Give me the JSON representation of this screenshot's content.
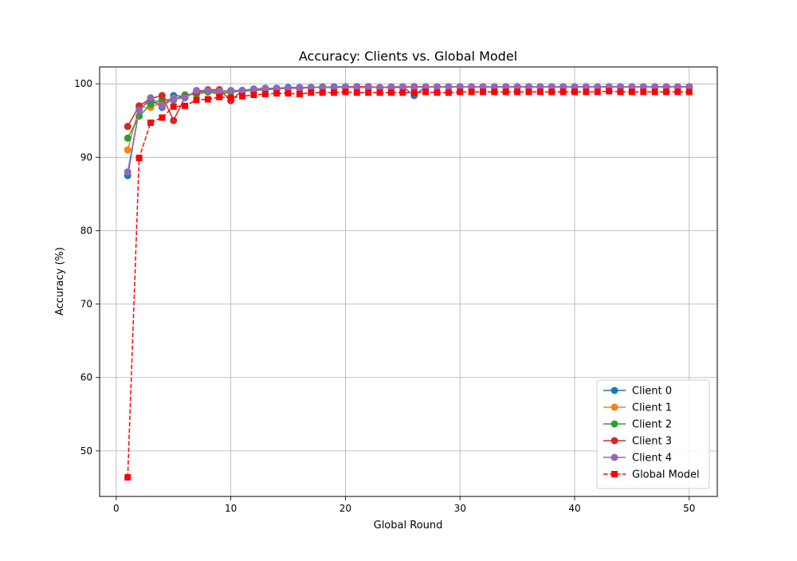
{
  "chart_data": {
    "type": "line",
    "title": "Accuracy: Clients vs. Global Model",
    "xlabel": "Global Round",
    "ylabel": "Accuracy (%)",
    "xlim": [
      -1.45,
      52.45
    ],
    "ylim": [
      43.8,
      102.3
    ],
    "xticks": [
      0,
      10,
      20,
      30,
      40,
      50
    ],
    "yticks": [
      50,
      60,
      70,
      80,
      90,
      100
    ],
    "grid": true,
    "legend_position": "lower-right",
    "x": [
      1,
      2,
      3,
      4,
      5,
      6,
      7,
      8,
      9,
      10,
      11,
      12,
      13,
      14,
      15,
      16,
      17,
      18,
      19,
      20,
      21,
      22,
      23,
      24,
      25,
      26,
      27,
      28,
      29,
      30,
      31,
      32,
      33,
      34,
      35,
      36,
      37,
      38,
      39,
      40,
      41,
      42,
      43,
      44,
      45,
      46,
      47,
      48,
      49,
      50
    ],
    "series": [
      {
        "name": "Client 0",
        "color": "#1f77b4",
        "marker": "circle",
        "linestyle": "solid",
        "values": [
          87.5,
          96.5,
          97.8,
          96.8,
          98.4,
          98.3,
          98.8,
          99.0,
          98.9,
          99.0,
          99.1,
          99.2,
          99.2,
          99.4,
          99.5,
          99.5,
          99.5,
          99.5,
          99.6,
          99.6,
          99.6,
          99.6,
          99.5,
          99.6,
          99.6,
          98.4,
          99.6,
          99.6,
          99.6,
          99.6,
          99.6,
          99.6,
          99.6,
          99.6,
          99.6,
          99.6,
          99.6,
          99.6,
          99.6,
          99.6,
          99.6,
          99.6,
          99.6,
          99.6,
          99.6,
          99.6,
          99.6,
          99.6,
          99.6,
          99.6
        ]
      },
      {
        "name": "Client 1",
        "color": "#ff7f0e",
        "marker": "circle",
        "linestyle": "solid",
        "values": [
          91.0,
          96.8,
          96.8,
          97.5,
          98.0,
          98.3,
          98.8,
          98.9,
          98.8,
          99.0,
          99.1,
          99.2,
          99.2,
          99.3,
          99.4,
          99.4,
          99.5,
          99.5,
          99.5,
          99.5,
          99.5,
          99.5,
          99.5,
          99.6,
          99.6,
          99.6,
          99.6,
          99.6,
          99.6,
          99.6,
          99.6,
          99.6,
          99.6,
          99.6,
          99.6,
          99.6,
          99.6,
          99.6,
          99.6,
          99.6,
          99.6,
          99.6,
          99.6,
          99.6,
          99.6,
          99.6,
          99.6,
          99.6,
          99.6,
          99.6
        ]
      },
      {
        "name": "Client 2",
        "color": "#2ca02c",
        "marker": "circle",
        "linestyle": "solid",
        "values": [
          92.6,
          95.6,
          97.2,
          97.9,
          97.8,
          98.5,
          98.6,
          98.9,
          98.6,
          98.9,
          99.0,
          99.1,
          99.2,
          99.3,
          99.4,
          99.4,
          99.5,
          99.6,
          99.5,
          99.6,
          99.5,
          99.5,
          99.5,
          99.5,
          99.5,
          99.6,
          99.6,
          99.6,
          99.6,
          99.6,
          99.6,
          99.6,
          99.6,
          99.6,
          99.6,
          99.6,
          99.6,
          99.6,
          99.6,
          99.6,
          99.6,
          99.6,
          99.6,
          99.6,
          99.6,
          99.6,
          99.6,
          99.6,
          99.6,
          99.6
        ]
      },
      {
        "name": "Client 3",
        "color": "#d62728",
        "marker": "circle",
        "linestyle": "solid",
        "values": [
          94.2,
          97.0,
          98.0,
          98.4,
          95.0,
          98.2,
          98.9,
          99.2,
          99.2,
          97.7,
          99.1,
          99.3,
          99.4,
          99.4,
          99.4,
          99.4,
          99.5,
          99.5,
          99.5,
          99.6,
          99.6,
          99.6,
          99.5,
          99.5,
          99.6,
          99.6,
          99.6,
          99.6,
          99.6,
          99.6,
          99.6,
          99.6,
          99.6,
          99.6,
          99.6,
          99.6,
          99.6,
          99.6,
          99.6,
          99.6,
          99.6,
          99.6,
          99.6,
          99.6,
          99.6,
          99.6,
          99.6,
          99.6,
          99.6,
          99.6
        ]
      },
      {
        "name": "Client 4",
        "color": "#9467bd",
        "marker": "circle",
        "linestyle": "solid",
        "values": [
          88.0,
          96.4,
          98.1,
          97.0,
          97.9,
          98.1,
          99.1,
          99.1,
          99.0,
          99.1,
          99.1,
          99.3,
          99.4,
          99.4,
          99.4,
          99.5,
          99.5,
          99.5,
          99.5,
          99.6,
          99.5,
          99.5,
          99.5,
          99.6,
          99.6,
          99.5,
          99.6,
          99.6,
          99.6,
          99.6,
          99.6,
          99.6,
          99.6,
          99.6,
          99.6,
          99.6,
          99.6,
          99.6,
          99.6,
          99.6,
          99.6,
          99.6,
          99.6,
          99.6,
          99.6,
          99.6,
          99.6,
          99.6,
          99.6,
          99.6
        ]
      },
      {
        "name": "Global Model",
        "color": "#ff0000",
        "marker": "square",
        "linestyle": "dashed",
        "values": [
          46.4,
          89.9,
          94.7,
          95.4,
          96.9,
          97.0,
          97.8,
          97.9,
          98.2,
          98.1,
          98.3,
          98.5,
          98.6,
          98.7,
          98.7,
          98.6,
          98.8,
          98.8,
          98.8,
          98.9,
          98.8,
          98.8,
          98.8,
          98.8,
          98.8,
          98.8,
          98.9,
          98.8,
          98.8,
          98.9,
          98.9,
          98.9,
          98.9,
          98.9,
          98.9,
          98.9,
          98.9,
          98.9,
          98.9,
          98.9,
          98.9,
          98.9,
          99.0,
          98.9,
          98.9,
          98.9,
          98.9,
          98.9,
          98.9,
          98.9
        ]
      }
    ]
  }
}
